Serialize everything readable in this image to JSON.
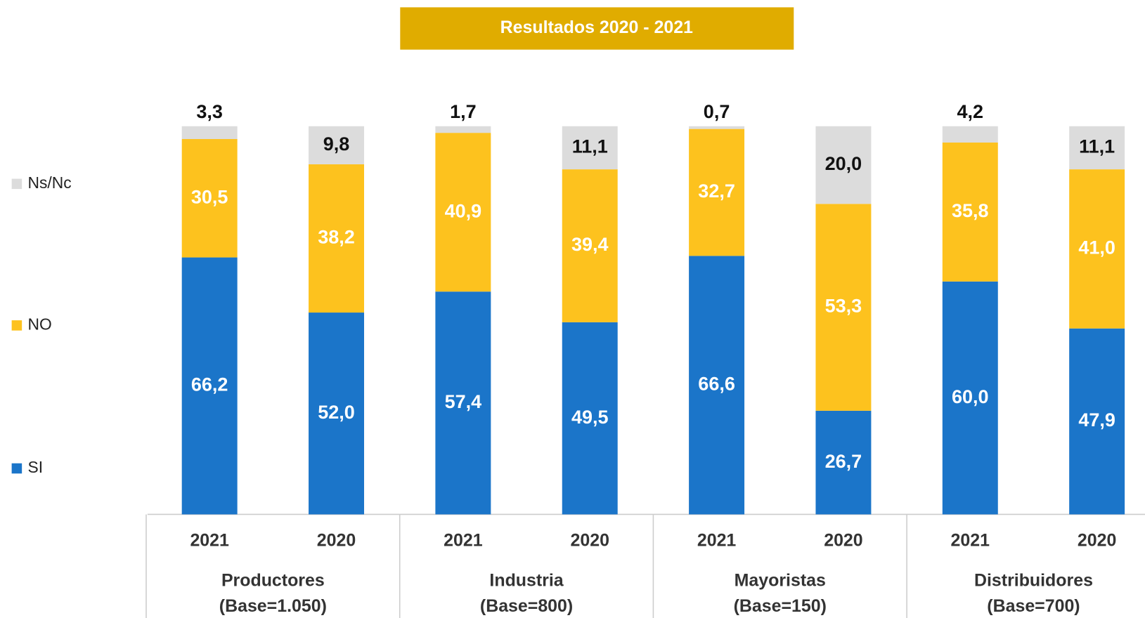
{
  "chart_data": {
    "type": "stacked_bar",
    "title": "Resultados 2020 - 2021",
    "categories": [
      "2021",
      "2020",
      "2021",
      "2020",
      "2021",
      "2020",
      "2021",
      "2020"
    ],
    "groups": [
      {
        "name": "Productores",
        "base": "(Base=1.050)"
      },
      {
        "name": "Industria",
        "base": "(Base=800)"
      },
      {
        "name": "Mayoristas",
        "base": "(Base=150)"
      },
      {
        "name": "Distribuidores",
        "base": "(Base=700)"
      }
    ],
    "series": [
      {
        "name": "SI",
        "color": "#1b75c9",
        "label_color": "#ffffff",
        "values": [
          66.2,
          52.0,
          57.4,
          49.5,
          66.6,
          26.7,
          60.0,
          47.9
        ],
        "value_labels": [
          "66,2",
          "52,0",
          "57,4",
          "49,5",
          "66,6",
          "26,7",
          "60,0",
          "47,9"
        ]
      },
      {
        "name": "NO",
        "color": "#fdc21e",
        "label_color": "#ffffff",
        "values": [
          30.5,
          38.2,
          40.9,
          39.4,
          32.7,
          53.3,
          35.8,
          41.0
        ],
        "value_labels": [
          "30,5",
          "38,2",
          "40,9",
          "39,4",
          "32,7",
          "53,3",
          "35,8",
          "41,0"
        ]
      },
      {
        "name": "Ns/Nc",
        "color": "#dcdcdc",
        "label_color": "#111111",
        "values": [
          3.3,
          9.8,
          1.7,
          11.1,
          0.7,
          20.0,
          4.2,
          11.1
        ],
        "value_labels": [
          "3,3",
          "9,8",
          "1,7",
          "11,1",
          "0,7",
          "20,0",
          "4,2",
          "11,1"
        ]
      }
    ],
    "ylim": [
      0,
      100
    ]
  }
}
